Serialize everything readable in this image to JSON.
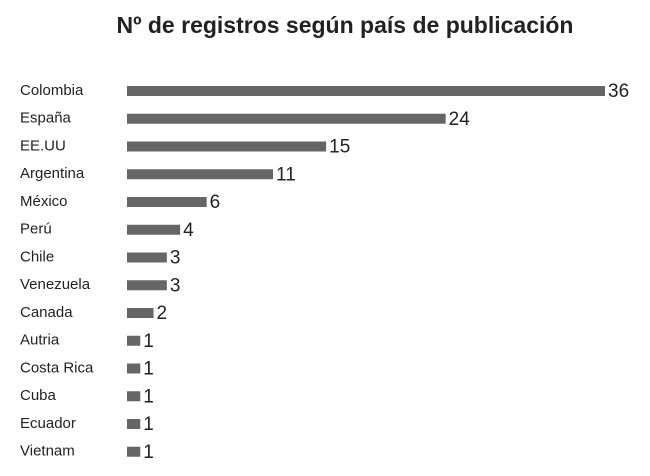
{
  "chart_data": {
    "type": "bar",
    "orientation": "horizontal",
    "title": "Nº de registros según país de publicación",
    "categories": [
      "Colombia",
      "España",
      "EE.UU",
      "Argentina",
      "México",
      "Perú",
      "Chile",
      "Venezuela",
      "Canada",
      "Autria",
      "Costa Rica",
      "Cuba",
      "Ecuador",
      "Vietnam"
    ],
    "values": [
      36,
      24,
      15,
      11,
      6,
      4,
      3,
      3,
      2,
      1,
      1,
      1,
      1,
      1
    ],
    "color": "#666666"
  }
}
